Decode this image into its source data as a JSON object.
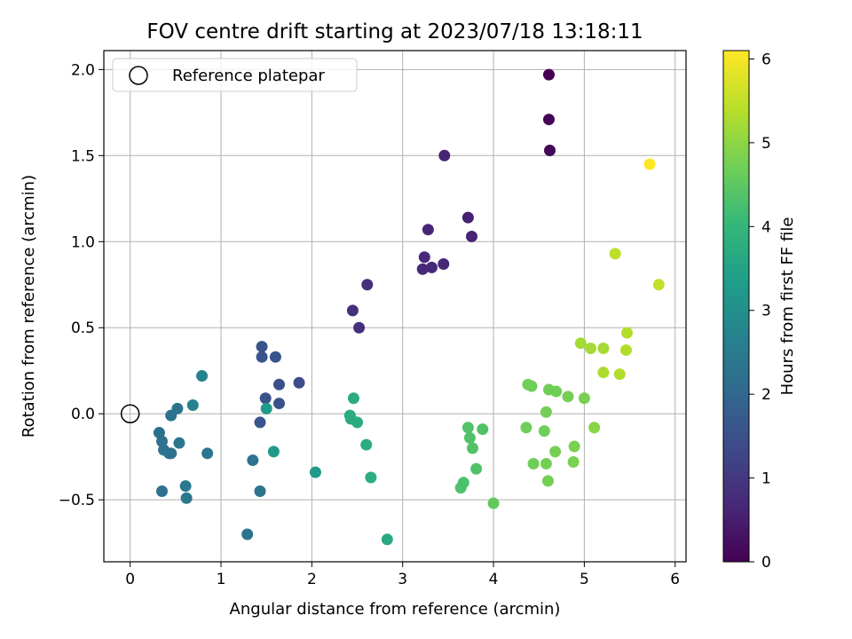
{
  "chart_data": {
    "type": "scatter",
    "title": "FOV centre drift starting at 2023/07/18 13:18:11",
    "xlabel": "Angular distance from reference (arcmin)",
    "ylabel": "Rotation from reference (arcmin)",
    "xlim": [
      -0.29,
      6.12
    ],
    "ylim": [
      -0.86,
      2.11
    ],
    "xticks": [
      0,
      1,
      2,
      3,
      4,
      5,
      6
    ],
    "xtick_labels": [
      "0",
      "1",
      "2",
      "3",
      "4",
      "5",
      "6"
    ],
    "yticks": [
      -0.5,
      0.0,
      0.5,
      1.0,
      1.5,
      2.0
    ],
    "ytick_labels": [
      "−0.5",
      "0.0",
      "0.5",
      "1.0",
      "1.5",
      "2.0"
    ],
    "grid": true,
    "legend": {
      "placement": "upper left",
      "entries": [
        "Reference platepar"
      ]
    },
    "reference_point": {
      "x": 0.0,
      "y": 0.0,
      "label": "Reference platepar"
    },
    "colorbar": {
      "label": "Hours from first FF file",
      "colormap": "viridis",
      "range": [
        0,
        6.1
      ],
      "ticks": [
        0,
        1,
        2,
        3,
        4,
        5,
        6
      ],
      "tick_labels": [
        "0",
        "1",
        "2",
        "3",
        "4",
        "5",
        "6"
      ]
    },
    "points": [
      {
        "x": 4.61,
        "y": 1.97,
        "h": 0.0
      },
      {
        "x": 4.61,
        "y": 1.71,
        "h": 0.05
      },
      {
        "x": 4.62,
        "y": 1.53,
        "h": 0.1
      },
      {
        "x": 3.46,
        "y": 1.5,
        "h": 0.6
      },
      {
        "x": 3.72,
        "y": 1.14,
        "h": 0.55
      },
      {
        "x": 3.28,
        "y": 1.07,
        "h": 0.65
      },
      {
        "x": 3.76,
        "y": 1.03,
        "h": 0.6
      },
      {
        "x": 3.24,
        "y": 0.91,
        "h": 0.7
      },
      {
        "x": 3.22,
        "y": 0.84,
        "h": 0.7
      },
      {
        "x": 3.32,
        "y": 0.85,
        "h": 0.7
      },
      {
        "x": 3.45,
        "y": 0.87,
        "h": 0.7
      },
      {
        "x": 2.61,
        "y": 0.75,
        "h": 0.85
      },
      {
        "x": 2.45,
        "y": 0.6,
        "h": 0.85
      },
      {
        "x": 2.52,
        "y": 0.5,
        "h": 0.85
      },
      {
        "x": 1.45,
        "y": 0.39,
        "h": 1.6
      },
      {
        "x": 1.45,
        "y": 0.33,
        "h": 1.6
      },
      {
        "x": 1.6,
        "y": 0.33,
        "h": 1.6
      },
      {
        "x": 1.86,
        "y": 0.18,
        "h": 1.45
      },
      {
        "x": 1.64,
        "y": 0.17,
        "h": 1.5
      },
      {
        "x": 1.49,
        "y": 0.09,
        "h": 1.55
      },
      {
        "x": 1.64,
        "y": 0.06,
        "h": 1.55
      },
      {
        "x": 1.43,
        "y": -0.05,
        "h": 1.65
      },
      {
        "x": 1.5,
        "y": 0.03,
        "h": 3.3
      },
      {
        "x": 1.58,
        "y": -0.22,
        "h": 3.3
      },
      {
        "x": 1.35,
        "y": -0.27,
        "h": 2.3
      },
      {
        "x": 1.43,
        "y": -0.45,
        "h": 2.3
      },
      {
        "x": 1.29,
        "y": -0.7,
        "h": 2.35
      },
      {
        "x": 0.79,
        "y": 0.22,
        "h": 2.7
      },
      {
        "x": 0.52,
        "y": 0.03,
        "h": 2.35
      },
      {
        "x": 0.69,
        "y": 0.05,
        "h": 2.7
      },
      {
        "x": 0.45,
        "y": -0.01,
        "h": 2.3
      },
      {
        "x": 0.32,
        "y": -0.11,
        "h": 2.25
      },
      {
        "x": 0.35,
        "y": -0.16,
        "h": 2.3
      },
      {
        "x": 0.37,
        "y": -0.21,
        "h": 2.3
      },
      {
        "x": 0.43,
        "y": -0.23,
        "h": 2.3
      },
      {
        "x": 0.45,
        "y": -0.23,
        "h": 2.3
      },
      {
        "x": 0.54,
        "y": -0.17,
        "h": 2.4
      },
      {
        "x": 0.85,
        "y": -0.23,
        "h": 2.4
      },
      {
        "x": 0.35,
        "y": -0.45,
        "h": 2.3
      },
      {
        "x": 0.61,
        "y": -0.42,
        "h": 2.45
      },
      {
        "x": 0.62,
        "y": -0.49,
        "h": 2.45
      },
      {
        "x": 2.04,
        "y": -0.34,
        "h": 3.3
      },
      {
        "x": 2.46,
        "y": 0.09,
        "h": 3.75
      },
      {
        "x": 2.42,
        "y": -0.01,
        "h": 3.75
      },
      {
        "x": 2.43,
        "y": -0.03,
        "h": 3.75
      },
      {
        "x": 2.5,
        "y": -0.05,
        "h": 3.75
      },
      {
        "x": 2.6,
        "y": -0.18,
        "h": 3.8
      },
      {
        "x": 2.65,
        "y": -0.37,
        "h": 3.8
      },
      {
        "x": 2.83,
        "y": -0.73,
        "h": 3.7
      },
      {
        "x": 3.72,
        "y": -0.08,
        "h": 4.4
      },
      {
        "x": 3.88,
        "y": -0.09,
        "h": 4.4
      },
      {
        "x": 3.74,
        "y": -0.14,
        "h": 4.4
      },
      {
        "x": 3.77,
        "y": -0.2,
        "h": 4.4
      },
      {
        "x": 3.81,
        "y": -0.32,
        "h": 4.4
      },
      {
        "x": 3.67,
        "y": -0.4,
        "h": 4.35
      },
      {
        "x": 3.64,
        "y": -0.43,
        "h": 4.35
      },
      {
        "x": 4.0,
        "y": -0.52,
        "h": 4.6
      },
      {
        "x": 4.38,
        "y": 0.17,
        "h": 4.75
      },
      {
        "x": 4.42,
        "y": 0.16,
        "h": 4.75
      },
      {
        "x": 4.61,
        "y": 0.14,
        "h": 4.75
      },
      {
        "x": 4.69,
        "y": 0.13,
        "h": 4.75
      },
      {
        "x": 4.82,
        "y": 0.1,
        "h": 4.8
      },
      {
        "x": 5.0,
        "y": 0.09,
        "h": 4.85
      },
      {
        "x": 4.58,
        "y": 0.01,
        "h": 4.8
      },
      {
        "x": 4.36,
        "y": -0.08,
        "h": 4.75
      },
      {
        "x": 4.56,
        "y": -0.1,
        "h": 4.75
      },
      {
        "x": 5.11,
        "y": -0.08,
        "h": 5.0
      },
      {
        "x": 4.89,
        "y": -0.19,
        "h": 4.85
      },
      {
        "x": 4.68,
        "y": -0.22,
        "h": 4.8
      },
      {
        "x": 4.44,
        "y": -0.29,
        "h": 4.75
      },
      {
        "x": 4.58,
        "y": -0.29,
        "h": 4.8
      },
      {
        "x": 4.88,
        "y": -0.28,
        "h": 4.85
      },
      {
        "x": 4.6,
        "y": -0.39,
        "h": 4.8
      },
      {
        "x": 4.96,
        "y": 0.41,
        "h": 5.25
      },
      {
        "x": 5.07,
        "y": 0.38,
        "h": 5.25
      },
      {
        "x": 5.21,
        "y": 0.38,
        "h": 5.25
      },
      {
        "x": 5.47,
        "y": 0.47,
        "h": 5.4
      },
      {
        "x": 5.46,
        "y": 0.37,
        "h": 5.4
      },
      {
        "x": 5.21,
        "y": 0.24,
        "h": 5.35
      },
      {
        "x": 5.39,
        "y": 0.23,
        "h": 5.4
      },
      {
        "x": 5.34,
        "y": 0.93,
        "h": 5.5
      },
      {
        "x": 5.82,
        "y": 0.75,
        "h": 5.55
      },
      {
        "x": 5.72,
        "y": 1.45,
        "h": 6.1
      }
    ]
  }
}
